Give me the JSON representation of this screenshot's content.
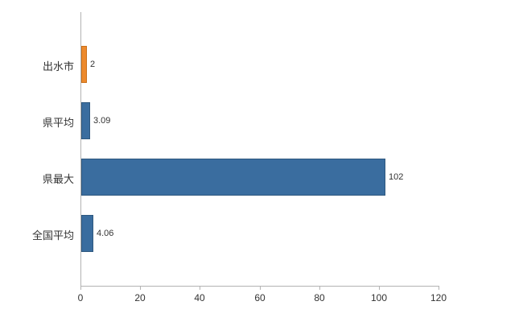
{
  "chart_data": {
    "type": "bar",
    "orientation": "horizontal",
    "title": "",
    "categories": [
      "出水市",
      "県平均",
      "県最大",
      "全国平均"
    ],
    "values": [
      2,
      3.09,
      102,
      4.06
    ],
    "value_labels": [
      "2",
      "3.09",
      "102",
      "4.06"
    ],
    "bar_colors": [
      "#ED8A2D",
      "#3A6D9F",
      "#3A6D9F",
      "#3A6D9F"
    ],
    "bar_border_colors": [
      "#C9701A",
      "#2E587F",
      "#2E587F",
      "#2E587F"
    ],
    "xlim": [
      0,
      120
    ],
    "x_ticks": [
      0,
      20,
      40,
      60,
      80,
      100,
      120
    ],
    "grid": false,
    "legend": "none",
    "axis_color": "#b3b3b3",
    "text_color": "#333333"
  }
}
